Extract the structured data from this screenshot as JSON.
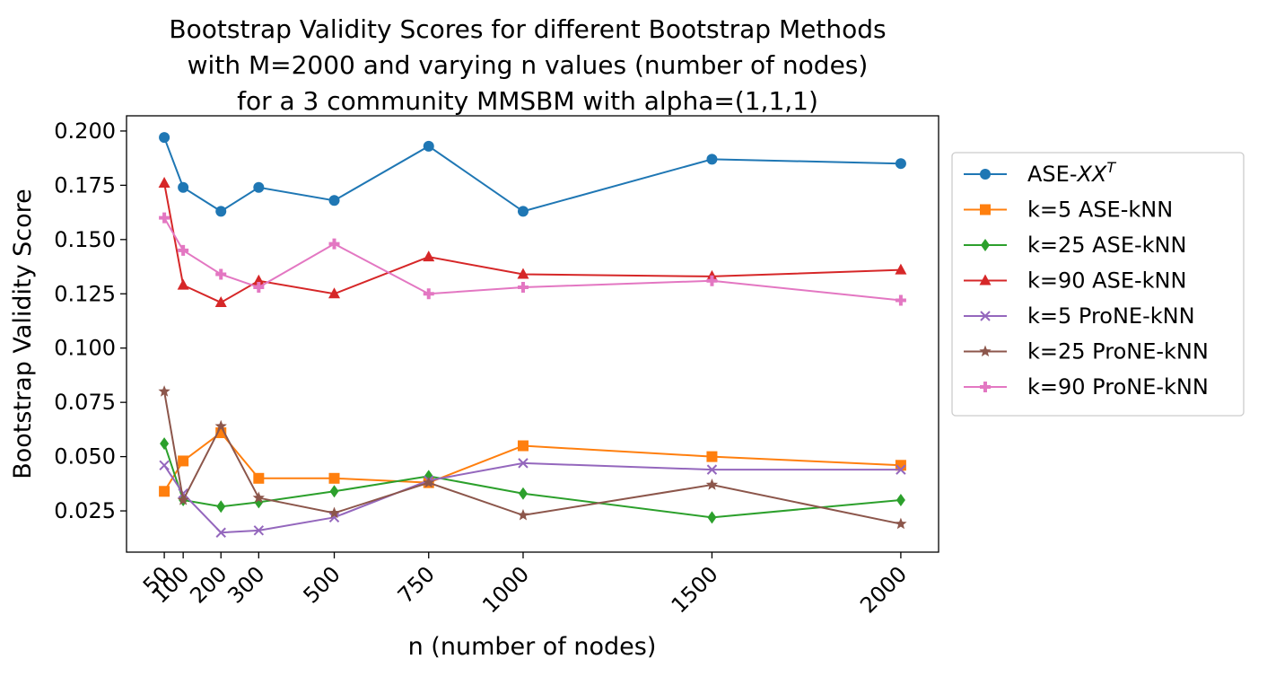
{
  "chart_data": {
    "type": "line",
    "title": [
      "Bootstrap Validity Scores for different Bootstrap Methods",
      "with M=2000 and varying n values (number of nodes)",
      "for a 3 community MMSBM with alpha=(1,1,1)"
    ],
    "xlabel": "n (number of nodes)",
    "ylabel": "Bootstrap Validity Score",
    "x": [
      50,
      100,
      200,
      300,
      500,
      750,
      1000,
      1500,
      2000
    ],
    "x_tick_labels": [
      "50",
      "100",
      "200",
      "300",
      "500",
      "750",
      "1000",
      "1500",
      "2000"
    ],
    "xlim": [
      -50,
      2100
    ],
    "ylim": [
      0.006,
      0.207
    ],
    "y_ticks": [
      0.025,
      0.05,
      0.075,
      0.1,
      0.125,
      0.15,
      0.175,
      0.2
    ],
    "y_tick_labels": [
      "0.025",
      "0.050",
      "0.075",
      "0.100",
      "0.125",
      "0.150",
      "0.175",
      "0.200"
    ],
    "grid": false,
    "legend_position": "right-outside",
    "series": [
      {
        "name": "ASE-",
        "name_math": "XX",
        "name_sup": "T",
        "color": "#1f77b4",
        "marker": "circle",
        "values": [
          0.197,
          0.174,
          0.163,
          0.174,
          0.168,
          0.193,
          0.163,
          0.187,
          0.185
        ]
      },
      {
        "name": "k=5 ASE-kNN",
        "color": "#ff7f0e",
        "marker": "square",
        "values": [
          0.034,
          0.048,
          0.061,
          0.04,
          0.04,
          0.038,
          0.055,
          0.05,
          0.046
        ]
      },
      {
        "name": "k=25 ASE-kNN",
        "color": "#2ca02c",
        "marker": "diamond",
        "values": [
          0.056,
          0.03,
          0.027,
          0.029,
          0.034,
          0.041,
          0.033,
          0.022,
          0.03
        ]
      },
      {
        "name": "k=90 ASE-kNN",
        "color": "#d62728",
        "marker": "triangle",
        "values": [
          0.176,
          0.129,
          0.121,
          0.131,
          0.125,
          0.142,
          0.134,
          0.133,
          0.136
        ]
      },
      {
        "name": "k=5 ProNE-kNN",
        "color": "#9467bd",
        "marker": "x",
        "values": [
          0.046,
          0.033,
          0.015,
          0.016,
          0.022,
          0.039,
          0.047,
          0.044,
          0.044
        ]
      },
      {
        "name": "k=25 ProNE-kNN",
        "color": "#8c564b",
        "marker": "star",
        "values": [
          0.08,
          0.03,
          0.064,
          0.031,
          0.024,
          0.038,
          0.023,
          0.037,
          0.019
        ]
      },
      {
        "name": "k=90 ProNE-kNN",
        "color": "#e377c2",
        "marker": "plus",
        "values": [
          0.16,
          0.145,
          0.134,
          0.128,
          0.148,
          0.125,
          0.128,
          0.131,
          0.122
        ]
      }
    ]
  }
}
